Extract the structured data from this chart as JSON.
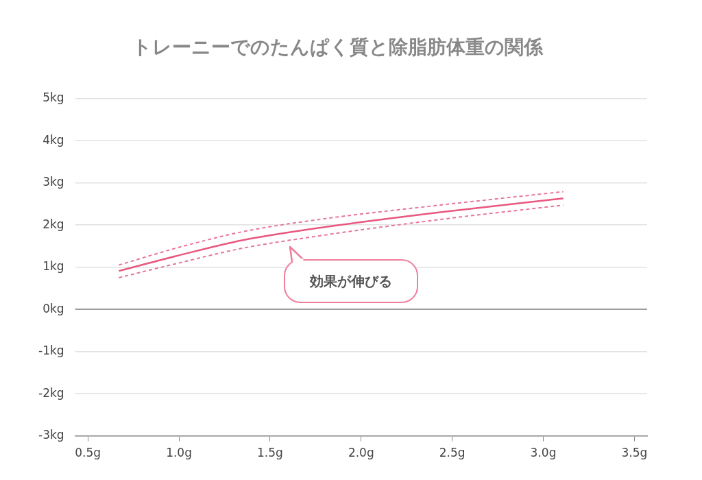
{
  "chart_data": {
    "type": "line",
    "title": "トレーニーでのたんぱく質と除脂肪体重の関係",
    "xlim": [
      0.43,
      3.57
    ],
    "xticks": [
      {
        "value": 0.5,
        "label": "0.5g"
      },
      {
        "value": 1.0,
        "label": "1.0g"
      },
      {
        "value": 1.5,
        "label": "1.5g"
      },
      {
        "value": 2.0,
        "label": "2.0g"
      },
      {
        "value": 2.5,
        "label": "2.5g"
      },
      {
        "value": 3.0,
        "label": "3.0g"
      },
      {
        "value": 3.5,
        "label": "3.5g"
      }
    ],
    "ylim": [
      -3,
      5
    ],
    "yticks": [
      {
        "value": -3,
        "label": "-3kg"
      },
      {
        "value": -2,
        "label": "-2kg"
      },
      {
        "value": -1,
        "label": "-1kg"
      },
      {
        "value": 0,
        "label": "0kg"
      },
      {
        "value": 1,
        "label": "1kg"
      },
      {
        "value": 2,
        "label": "2kg"
      },
      {
        "value": 3,
        "label": "3kg"
      },
      {
        "value": 4,
        "label": "4kg"
      },
      {
        "value": 5,
        "label": "5kg"
      }
    ],
    "grid": "y",
    "legend": false,
    "marker": "none",
    "x": [
      0.67,
      1.0,
      1.35,
      1.75,
      2.45,
      3.11
    ],
    "series": [
      {
        "color": "#e8577e",
        "line_style": "solid",
        "values": [
          0.91,
          1.28,
          1.64,
          1.92,
          2.31,
          2.63
        ]
      },
      {
        "color": "#e8769a",
        "line_style": "dashed",
        "values": [
          1.05,
          1.47,
          1.84,
          2.12,
          2.48,
          2.79
        ]
      },
      {
        "color": "#e8769a",
        "line_style": "dashed",
        "values": [
          0.75,
          1.1,
          1.45,
          1.73,
          2.14,
          2.47
        ]
      }
    ],
    "ref_lines": [
      {
        "axis": "y",
        "value": 0,
        "color": "#808080"
      }
    ],
    "annotations": [
      "効果が伸びる"
    ]
  }
}
